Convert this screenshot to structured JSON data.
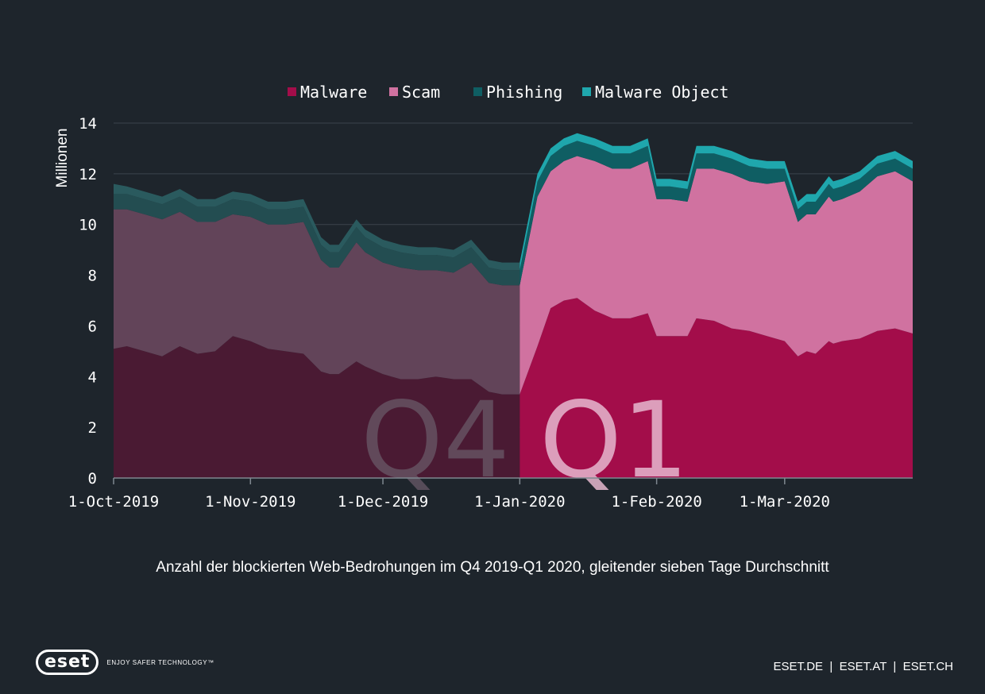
{
  "chart_data": {
    "type": "area",
    "stacked": true,
    "ylabel": "Millionen",
    "ylim": [
      0,
      14
    ],
    "yticks": [
      "0",
      "2",
      "4",
      "6",
      "8",
      "10",
      "12",
      "14"
    ],
    "xlim": [
      "2019-10-01",
      "2020-03-30"
    ],
    "xticks": [
      {
        "date": "2019-10-01",
        "label": "1-Oct-2019"
      },
      {
        "date": "2019-11-01",
        "label": "1-Nov-2019"
      },
      {
        "date": "2019-12-01",
        "label": "1-Dec-2019"
      },
      {
        "date": "2020-01-01",
        "label": "1-Jan-2020"
      },
      {
        "date": "2020-02-01",
        "label": "1-Feb-2020"
      },
      {
        "date": "2020-03-01",
        "label": "1-Mar-2020"
      }
    ],
    "legend": "top",
    "legend_entries": [
      "Malware",
      "Scam",
      "Phishing",
      "Malware Object"
    ],
    "quarters": [
      {
        "label": "Q4",
        "start": "2019-10-01",
        "end": "2020-01-01"
      },
      {
        "label": "Q1",
        "start": "2020-01-01",
        "end": "2020-03-30"
      }
    ],
    "colors": {
      "Malware": "#a30d4a",
      "Scam": "#d072a0",
      "Phishing": "#0f5e63",
      "Malware Object": "#1fa7ad",
      "Q4_Malware": "#4a1a33",
      "Q4_Scam": "#624459",
      "Q4_Phishing": "#234d51",
      "Q4_Malware Object": "#2a5a5e"
    },
    "x": [
      "2019-10-01",
      "2019-10-04",
      "2019-10-08",
      "2019-10-12",
      "2019-10-16",
      "2019-10-20",
      "2019-10-24",
      "2019-10-28",
      "2019-11-01",
      "2019-11-05",
      "2019-11-09",
      "2019-11-13",
      "2019-11-17",
      "2019-11-19",
      "2019-11-21",
      "2019-11-25",
      "2019-11-27",
      "2019-12-01",
      "2019-12-05",
      "2019-12-09",
      "2019-12-13",
      "2019-12-17",
      "2019-12-21",
      "2019-12-25",
      "2019-12-28",
      "2020-01-01",
      "2020-01-05",
      "2020-01-08",
      "2020-01-11",
      "2020-01-14",
      "2020-01-18",
      "2020-01-22",
      "2020-01-26",
      "2020-01-30",
      "2020-02-01",
      "2020-02-04",
      "2020-02-08",
      "2020-02-10",
      "2020-02-14",
      "2020-02-18",
      "2020-02-22",
      "2020-02-26",
      "2020-03-01",
      "2020-03-04",
      "2020-03-06",
      "2020-03-08",
      "2020-03-11",
      "2020-03-12",
      "2020-03-14",
      "2020-03-18",
      "2020-03-22",
      "2020-03-26",
      "2020-03-30"
    ],
    "series": [
      {
        "name": "Malware",
        "values": [
          5.1,
          5.2,
          5.0,
          4.8,
          5.2,
          4.9,
          5.0,
          5.6,
          5.4,
          5.1,
          5.0,
          4.9,
          4.2,
          4.1,
          4.1,
          4.6,
          4.4,
          4.1,
          3.9,
          3.9,
          4.0,
          3.9,
          3.9,
          3.4,
          3.3,
          3.3,
          5.2,
          6.7,
          7.0,
          7.1,
          6.6,
          6.3,
          6.3,
          6.5,
          5.6,
          5.6,
          5.6,
          6.3,
          6.2,
          5.9,
          5.8,
          5.6,
          5.4,
          4.8,
          5.0,
          4.9,
          5.4,
          5.3,
          5.4,
          5.5,
          5.8,
          5.9,
          5.7
        ]
      },
      {
        "name": "Scam",
        "values": [
          5.5,
          5.4,
          5.4,
          5.4,
          5.3,
          5.2,
          5.1,
          4.8,
          4.9,
          4.9,
          5.0,
          5.2,
          4.4,
          4.2,
          4.2,
          4.7,
          4.5,
          4.4,
          4.4,
          4.3,
          4.2,
          4.2,
          4.6,
          4.3,
          4.3,
          4.3,
          5.9,
          5.4,
          5.5,
          5.6,
          5.9,
          5.9,
          5.9,
          6.0,
          5.4,
          5.4,
          5.3,
          5.9,
          6.0,
          6.1,
          5.9,
          6.0,
          6.3,
          5.3,
          5.4,
          5.5,
          5.7,
          5.6,
          5.6,
          5.8,
          6.1,
          6.2,
          6.0
        ]
      },
      {
        "name": "Phishing",
        "values": [
          0.6,
          0.6,
          0.6,
          0.6,
          0.6,
          0.6,
          0.6,
          0.6,
          0.6,
          0.6,
          0.6,
          0.6,
          0.6,
          0.6,
          0.6,
          0.6,
          0.6,
          0.6,
          0.6,
          0.6,
          0.6,
          0.6,
          0.6,
          0.6,
          0.6,
          0.6,
          0.6,
          0.6,
          0.6,
          0.6,
          0.6,
          0.6,
          0.6,
          0.6,
          0.5,
          0.5,
          0.5,
          0.6,
          0.6,
          0.6,
          0.6,
          0.6,
          0.5,
          0.5,
          0.5,
          0.5,
          0.5,
          0.5,
          0.5,
          0.5,
          0.5,
          0.5,
          0.5
        ]
      },
      {
        "name": "Malware Object",
        "values": [
          0.4,
          0.3,
          0.3,
          0.3,
          0.3,
          0.3,
          0.3,
          0.3,
          0.3,
          0.3,
          0.3,
          0.3,
          0.3,
          0.3,
          0.3,
          0.3,
          0.3,
          0.3,
          0.3,
          0.3,
          0.3,
          0.3,
          0.3,
          0.3,
          0.3,
          0.3,
          0.3,
          0.3,
          0.3,
          0.3,
          0.3,
          0.3,
          0.3,
          0.3,
          0.3,
          0.3,
          0.3,
          0.3,
          0.3,
          0.3,
          0.3,
          0.3,
          0.3,
          0.3,
          0.3,
          0.3,
          0.3,
          0.3,
          0.3,
          0.3,
          0.3,
          0.3,
          0.3
        ]
      }
    ]
  },
  "caption": "Anzahl der blockierten Web-Bedrohungen im Q4 2019-Q1 2020, gleitender sieben Tage Durchschnitt",
  "logo": {
    "name": "eset",
    "tagline": "ENJOY SAFER TECHNOLOGY™"
  },
  "footer": "ESET.DE  |  ESET.AT  |  ESET.CH"
}
